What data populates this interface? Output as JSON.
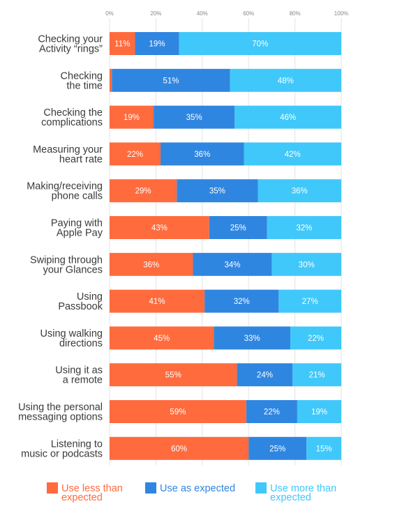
{
  "chart_data": {
    "type": "bar",
    "orientation": "horizontal",
    "stacked": true,
    "title": "",
    "xlabel": "",
    "ylabel": "",
    "xlim": [
      0,
      100
    ],
    "tick_labels": [
      "0%",
      "20%",
      "40%",
      "60%",
      "80%",
      "100%"
    ],
    "grid": true,
    "legend_position": "bottom",
    "categories": [
      [
        "Checking your",
        "Activity “rings”"
      ],
      [
        "Checking",
        "the time"
      ],
      [
        "Checking the",
        "complications"
      ],
      [
        "Measuring your",
        "heart rate"
      ],
      [
        "Making/receiving",
        "phone calls"
      ],
      [
        "Paying with",
        "Apple Pay"
      ],
      [
        "Swiping through",
        "your Glances"
      ],
      [
        "Using",
        "Passbook"
      ],
      [
        "Using walking",
        "directions"
      ],
      [
        "Using it as",
        "a remote"
      ],
      [
        "Using the personal",
        "messaging options"
      ],
      [
        "Listening to",
        "music or podcasts"
      ]
    ],
    "series": [
      {
        "name": [
          "Use less than",
          "expected"
        ],
        "color": "#FF6B3D",
        "values": [
          11,
          1,
          19,
          22,
          29,
          43,
          36,
          41,
          45,
          55,
          59,
          60
        ],
        "labels": [
          "11%",
          "",
          "19%",
          "22%",
          "29%",
          "43%",
          "36%",
          "41%",
          "45%",
          "55%",
          "59%",
          "60%"
        ]
      },
      {
        "name": [
          "Use as expected"
        ],
        "color": "#2F86E0",
        "values": [
          19,
          51,
          35,
          36,
          35,
          25,
          34,
          32,
          33,
          24,
          22,
          25
        ],
        "labels": [
          "19%",
          "51%",
          "35%",
          "36%",
          "35%",
          "25%",
          "34%",
          "32%",
          "33%",
          "24%",
          "22%",
          "25%"
        ]
      },
      {
        "name": [
          "Use more than",
          "expected"
        ],
        "color": "#40C8FA",
        "values": [
          70,
          48,
          46,
          42,
          36,
          32,
          30,
          27,
          22,
          21,
          19,
          15
        ],
        "labels": [
          "70%",
          "48%",
          "46%",
          "42%",
          "36%",
          "32%",
          "30%",
          "27%",
          "22%",
          "21%",
          "19%",
          "15%"
        ]
      }
    ]
  }
}
